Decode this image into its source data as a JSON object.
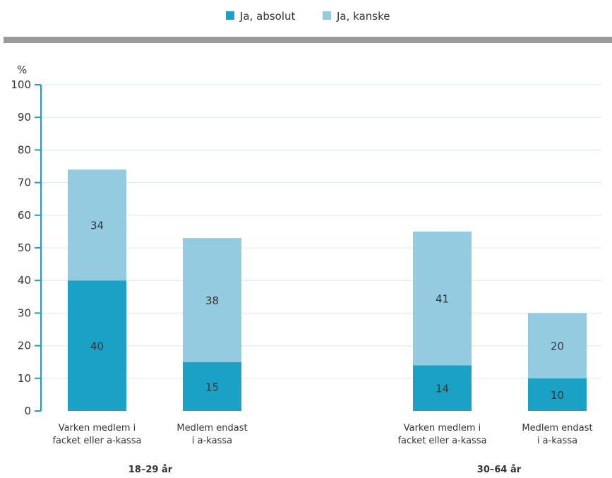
{
  "chart_data": {
    "type": "bar",
    "stacked": true,
    "unit_label": "%",
    "ylim": [
      0,
      100
    ],
    "yticks": [
      0,
      10,
      20,
      30,
      40,
      50,
      60,
      70,
      80,
      90,
      100
    ],
    "grid": true,
    "legend_position": "top-center",
    "groups": [
      {
        "label": "18–29 år",
        "categories": [
          {
            "label": [
              "Varken medlem i",
              "facket eller a-kassa"
            ],
            "values": [
              40,
              34
            ]
          },
          {
            "label": [
              "Medlem endast",
              "i a-kassa"
            ],
            "values": [
              15,
              38
            ]
          }
        ]
      },
      {
        "label": "30–64 år",
        "categories": [
          {
            "label": [
              "Varken medlem i",
              "facket eller a-kassa"
            ],
            "values": [
              14,
              41
            ]
          },
          {
            "label": [
              "Medlem endast",
              "i a-kassa"
            ],
            "values": [
              10,
              20
            ]
          }
        ]
      }
    ],
    "series": [
      {
        "name": "Ja, absolut",
        "color": "#1ba1c6"
      },
      {
        "name": "Ja, kanske",
        "color": "#95cbe0"
      }
    ],
    "axis_color": "#1ba1c6",
    "grid_color": "#d6ebf3",
    "divider_color": "#9a9a9a"
  }
}
